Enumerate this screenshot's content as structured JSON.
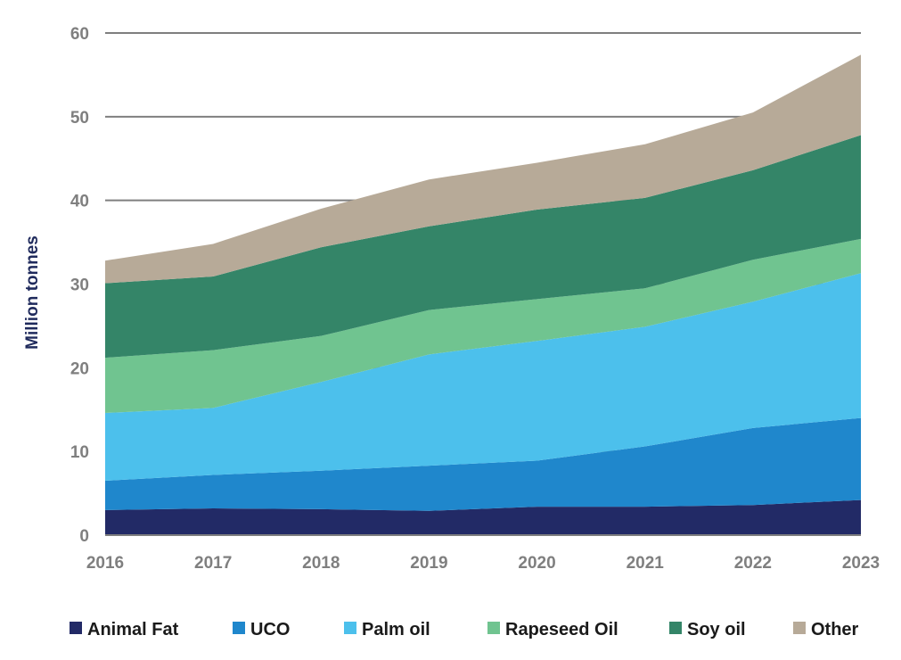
{
  "chart_data": {
    "type": "area",
    "stacked": true,
    "title": "",
    "xlabel": "",
    "ylabel": "Million tonnes",
    "ylim": [
      0,
      60
    ],
    "yticks": [
      0,
      10,
      20,
      30,
      40,
      50,
      60
    ],
    "grid": true,
    "legend_position": "bottom",
    "categories": [
      "2016",
      "2017",
      "2018",
      "2019",
      "2020",
      "2021",
      "2022",
      "2023"
    ],
    "series": [
      {
        "name": "Animal Fat",
        "color": "#222a66",
        "values": [
          3.0,
          3.2,
          3.1,
          2.9,
          3.4,
          3.4,
          3.6,
          4.2
        ]
      },
      {
        "name": "UCO",
        "color": "#1f87cc",
        "values": [
          3.5,
          4.0,
          4.6,
          5.4,
          5.5,
          7.2,
          9.2,
          9.8
        ]
      },
      {
        "name": "Palm oil",
        "color": "#4cc0ec",
        "values": [
          8.1,
          8.0,
          10.6,
          13.3,
          14.3,
          14.3,
          15.1,
          17.3
        ]
      },
      {
        "name": "Rapeseed Oil",
        "color": "#70c490",
        "values": [
          6.6,
          6.9,
          5.5,
          5.3,
          5.0,
          4.6,
          5.0,
          4.1
        ]
      },
      {
        "name": "Soy oil",
        "color": "#348568",
        "values": [
          8.9,
          8.8,
          10.6,
          10.0,
          10.7,
          10.8,
          10.7,
          12.4
        ]
      },
      {
        "name": "Other",
        "color": "#b7aa98",
        "values": [
          2.7,
          3.9,
          4.6,
          5.6,
          5.6,
          6.4,
          6.9,
          9.6
        ]
      }
    ]
  }
}
